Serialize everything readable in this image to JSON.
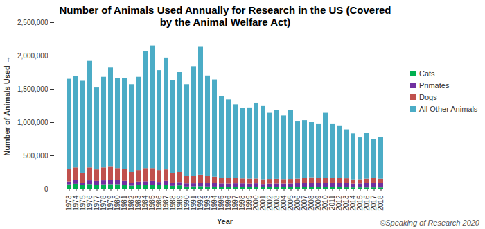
{
  "chart_data": {
    "type": "bar",
    "title": "Number of Animals Used Annually for Research in the US (Covered by the Animal Welfare Act)",
    "caption": "©Speaking of Research 2020",
    "x_label": "Year",
    "y_label": "Number of Animals Used",
    "stacked": true,
    "grid": false,
    "legend": "right",
    "categories": [
      "1973",
      "1974",
      "1975",
      "1976",
      "1977",
      "1978",
      "1979",
      "1980",
      "1981",
      "1982",
      "1983",
      "1984",
      "1985",
      "1986",
      "1987",
      "1988",
      "1989",
      "1990",
      "1991",
      "1992",
      "1993",
      "1994",
      "1995",
      "1996",
      "1997",
      "1998",
      "1999",
      "2000",
      "2001",
      "2002",
      "2003",
      "2004",
      "2005",
      "2006",
      "2007",
      "2008",
      "2009",
      "2010",
      "2011",
      "2012",
      "2013",
      "2014",
      "2015",
      "2016",
      "2017",
      "2018"
    ],
    "series": [
      {
        "name": "Cats",
        "color": "#00b050",
        "values": [
          66000,
          74000,
          52000,
          70000,
          62000,
          66000,
          69000,
          68000,
          59000,
          46000,
          53000,
          56000,
          59000,
          54000,
          55000,
          43000,
          50000,
          33000,
          35000,
          38000,
          33000,
          32000,
          29000,
          26000,
          26000,
          24000,
          23000,
          25000,
          22000,
          24000,
          25000,
          23000,
          22000,
          21000,
          22000,
          24000,
          22000,
          21000,
          23000,
          22000,
          20000,
          19000,
          19000,
          18000,
          19000,
          18000
        ]
      },
      {
        "name": "Primates",
        "color": "#7030a0",
        "values": [
          42000,
          51000,
          36000,
          54000,
          54000,
          58000,
          61000,
          57000,
          58000,
          46000,
          54000,
          55000,
          57000,
          49000,
          62000,
          51000,
          51000,
          48000,
          47000,
          51000,
          50000,
          55000,
          51000,
          52000,
          56000,
          57000,
          54000,
          57000,
          49000,
          53000,
          54000,
          55000,
          57000,
          62000,
          69000,
          70000,
          70000,
          71000,
          71000,
          70000,
          70000,
          58000,
          61000,
          71000,
          75000,
          71000
        ]
      },
      {
        "name": "Dogs",
        "color": "#c0504d",
        "values": [
          192000,
          195000,
          152000,
          196000,
          174000,
          196000,
          210000,
          185000,
          183000,
          158000,
          173000,
          199000,
          194000,
          177000,
          173000,
          136000,
          149000,
          109000,
          108000,
          121000,
          107000,
          93000,
          80000,
          82000,
          75000,
          72000,
          73000,
          70000,
          70000,
          68000,
          68000,
          65000,
          66000,
          67000,
          73000,
          77000,
          67000,
          65000,
          65000,
          70000,
          65000,
          62000,
          61000,
          61000,
          67000,
          60000
        ]
      },
      {
        "name": "All Other Animals",
        "color": "#4bacc6",
        "values": [
          1350000,
          1370000,
          1380000,
          1600000,
          1230000,
          1360000,
          1480000,
          1350000,
          1360000,
          1320000,
          1400000,
          1760000,
          1840000,
          1500000,
          1680000,
          1400000,
          1500000,
          1380000,
          1650000,
          1920000,
          1510000,
          1460000,
          1230000,
          1180000,
          1110000,
          1060000,
          1070000,
          1140000,
          1100000,
          995000,
          1040000,
          957000,
          1035000,
          860000,
          866000,
          829000,
          821000,
          983000,
          821000,
          788000,
          735000,
          691000,
          629000,
          690000,
          589000,
          631000
        ]
      }
    ],
    "ylim": [
      0,
      2500000
    ],
    "yticks": [
      {
        "value": 0,
        "label": "0"
      },
      {
        "value": 500000,
        "label": "500,000"
      },
      {
        "value": 1000000,
        "label": "1,000,000"
      },
      {
        "value": 1500000,
        "label": "1,500,000"
      },
      {
        "value": 2000000,
        "label": "2,000,000"
      },
      {
        "value": 2500000,
        "label": "2,500,000"
      }
    ]
  }
}
